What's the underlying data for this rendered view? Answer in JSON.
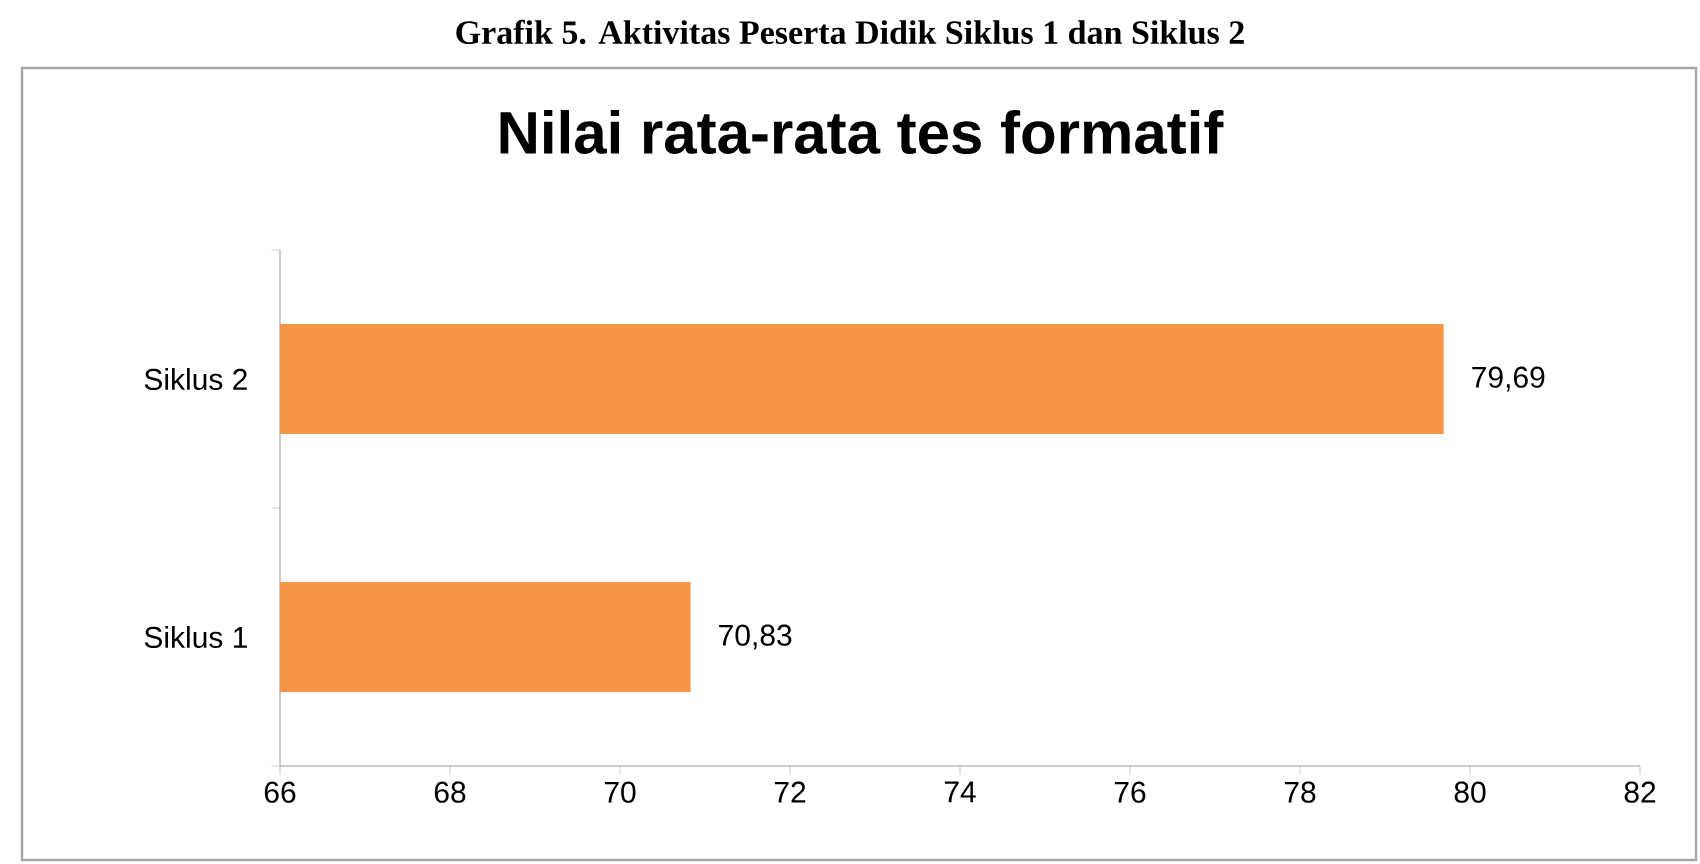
{
  "chart_data": {
    "type": "bar",
    "orientation": "horizontal",
    "title": "Nilai rata-rata tes formatif",
    "annotations": [
      "Grafik 5. Aktivitas Peserta Didik Siklus 1 dan Siklus 2"
    ],
    "categories": [
      "Siklus 2",
      "Siklus 1"
    ],
    "values": [
      79.69,
      70.83
    ],
    "value_labels": [
      "79,69",
      "70,83"
    ],
    "color": "#f79646",
    "xlim": [
      66,
      82
    ],
    "xticks": [
      66,
      68,
      70,
      72,
      74,
      76,
      78,
      80,
      82
    ],
    "grid": false
  }
}
